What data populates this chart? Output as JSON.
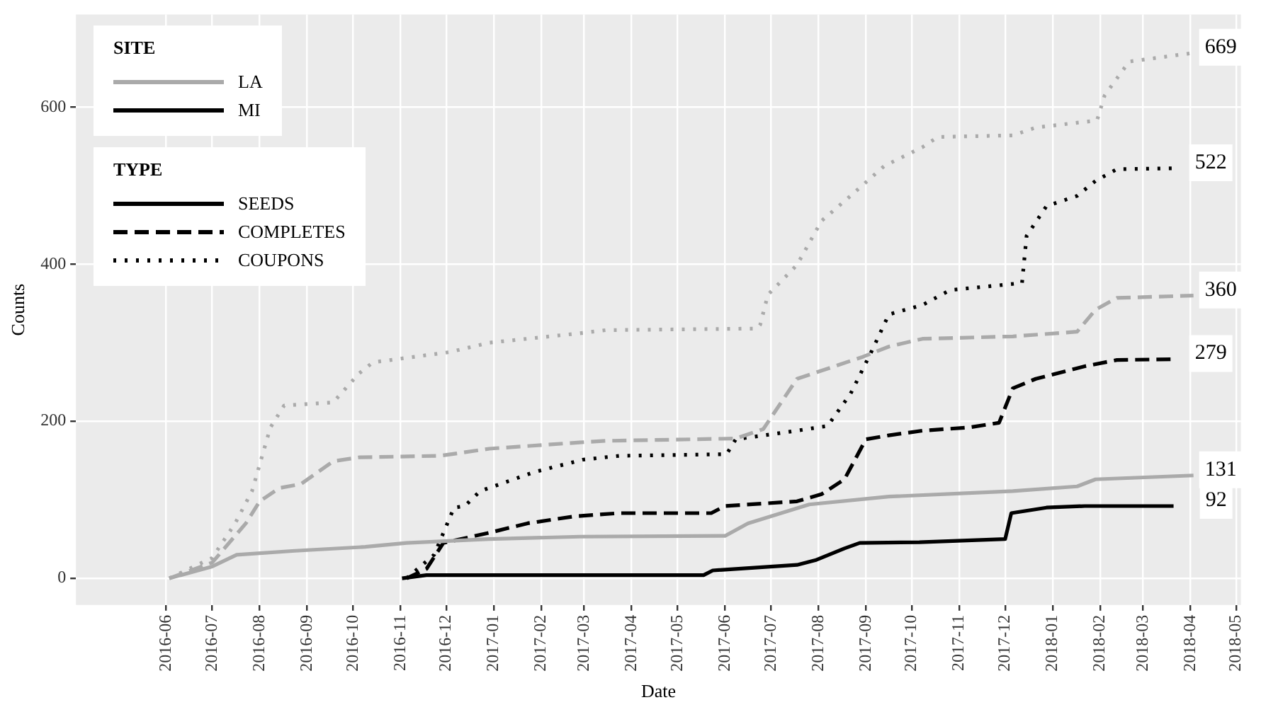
{
  "chart_data": {
    "type": "line",
    "xlabel": "Date",
    "ylabel": "Counts",
    "xlim": [
      "2016-04-03",
      "2018-05-04"
    ],
    "xticks": [
      "2016-06",
      "2016-07",
      "2016-08",
      "2016-09",
      "2016-10",
      "2016-11",
      "2016-12",
      "2017-01",
      "2017-02",
      "2017-03",
      "2017-04",
      "2017-05",
      "2017-06",
      "2017-07",
      "2017-08",
      "2017-09",
      "2017-10",
      "2017-11",
      "2017-12",
      "2018-01",
      "2018-02",
      "2018-03",
      "2018-04",
      "2018-05"
    ],
    "ylim": [
      -34,
      718
    ],
    "yticks": [
      0,
      200,
      400,
      600
    ],
    "grid": true,
    "annotations": [
      "SITE",
      "LA",
      "MI",
      "TYPE",
      "SEEDS",
      "COMPLETES",
      "COUPONS"
    ],
    "series": [
      {
        "color": "#aaaaaa",
        "line_style": "solid",
        "x": [
          "2016-06-03",
          "2016-07-01",
          "2016-07-17",
          "2016-08-24",
          "2016-10-09",
          "2016-11-05",
          "2016-12-29",
          "2017-02-26",
          "2017-06-01",
          "2017-06-16",
          "2017-07-26",
          "2017-09-16",
          "2017-12-06",
          "2018-01-17",
          "2018-01-29",
          "2018-04-03"
        ],
        "values": [
          0,
          15,
          30,
          35,
          40,
          45,
          50,
          53,
          54,
          70,
          94,
          104,
          111,
          117,
          126,
          131
        ],
        "value_labels": [
          null,
          null,
          null,
          null,
          null,
          null,
          null,
          null,
          null,
          null,
          null,
          null,
          null,
          null,
          null,
          "131"
        ]
      },
      {
        "color": "#aaaaaa",
        "line_style": "dashed",
        "x": [
          "2016-06-03",
          "2016-07-01",
          "2016-07-23",
          "2016-08-01",
          "2016-08-14",
          "2016-08-28",
          "2016-09-18",
          "2016-10-05",
          "2016-11-27",
          "2016-12-29",
          "2017-02-26",
          "2017-03-15",
          "2017-06-08",
          "2017-06-26",
          "2017-07-18",
          "2017-08-30",
          "2017-09-16",
          "2017-10-08",
          "2017-12-06",
          "2018-01-17",
          "2018-01-29",
          "2018-02-12",
          "2018-04-03"
        ],
        "values": [
          0,
          20,
          70,
          98,
          115,
          120,
          149,
          154,
          156,
          165,
          173,
          175,
          178,
          190,
          254,
          282,
          295,
          305,
          308,
          314,
          342,
          357,
          360
        ],
        "value_labels": [
          null,
          null,
          null,
          null,
          null,
          null,
          null,
          null,
          null,
          null,
          null,
          null,
          null,
          null,
          null,
          null,
          null,
          null,
          null,
          null,
          null,
          null,
          "360"
        ]
      },
      {
        "color": "#aaaaaa",
        "line_style": "dotted",
        "x": [
          "2016-06-03",
          "2016-07-01",
          "2016-07-16",
          "2016-07-27",
          "2016-08-08",
          "2016-08-17",
          "2016-09-18",
          "2016-10-05",
          "2016-10-14",
          "2016-12-03",
          "2016-12-29",
          "2017-02-26",
          "2017-03-15",
          "2017-06-22",
          "2017-06-24",
          "2017-06-29",
          "2017-07-18",
          "2017-08-03",
          "2017-08-22",
          "2017-09-13",
          "2017-10-08",
          "2017-10-18",
          "2017-12-06",
          "2017-12-21",
          "2018-01-30",
          "2018-02-04",
          "2018-02-20",
          "2018-04-03"
        ],
        "values": [
          0,
          26,
          70,
          111,
          192,
          220,
          224,
          261,
          275,
          288,
          300,
          312,
          316,
          318,
          323,
          361,
          399,
          455,
          487,
          525,
          549,
          562,
          564,
          574,
          583,
          615,
          658,
          669
        ],
        "value_labels": [
          null,
          null,
          null,
          null,
          null,
          null,
          null,
          null,
          null,
          null,
          null,
          null,
          null,
          null,
          null,
          null,
          null,
          null,
          null,
          null,
          null,
          null,
          null,
          null,
          null,
          null,
          null,
          "669"
        ]
      },
      {
        "color": "#000000",
        "line_style": "solid",
        "x": [
          "2016-11-02",
          "2016-11-18",
          "2017-05-18",
          "2017-05-24",
          "2017-07-18",
          "2017-07-30",
          "2017-08-18",
          "2017-08-28",
          "2017-10-06",
          "2017-12-01",
          "2017-12-05",
          "2017-12-28",
          "2018-01-22",
          "2018-03-21"
        ],
        "values": [
          0,
          4,
          4,
          10,
          17,
          23,
          38,
          45,
          46,
          50,
          83,
          90,
          92,
          92
        ],
        "value_labels": [
          null,
          null,
          null,
          null,
          null,
          null,
          null,
          null,
          null,
          null,
          null,
          null,
          null,
          "92"
        ]
      },
      {
        "color": "#000000",
        "line_style": "dashed",
        "x": [
          "2016-11-05",
          "2016-11-18",
          "2016-11-29",
          "2016-12-29",
          "2017-01-23",
          "2017-02-23",
          "2017-03-24",
          "2017-05-23",
          "2017-06-01",
          "2017-07-18",
          "2017-08-03",
          "2017-08-18",
          "2017-09-01",
          "2017-09-16",
          "2017-10-08",
          "2017-11-07",
          "2017-11-27",
          "2017-12-06",
          "2017-12-21",
          "2018-01-22",
          "2018-02-12",
          "2018-03-21"
        ],
        "values": [
          0,
          12,
          45,
          58,
          70,
          79,
          83,
          83,
          92,
          98,
          107,
          126,
          177,
          182,
          188,
          192,
          198,
          242,
          254,
          270,
          278,
          279
        ],
        "value_labels": [
          null,
          null,
          null,
          null,
          null,
          null,
          null,
          null,
          null,
          null,
          null,
          null,
          null,
          null,
          null,
          null,
          null,
          null,
          null,
          null,
          null,
          "279"
        ]
      },
      {
        "color": "#000000",
        "line_style": "dotted",
        "x": [
          "2016-11-05",
          "2016-11-23",
          "2016-12-06",
          "2016-12-13",
          "2016-12-23",
          "2017-01-27",
          "2017-02-28",
          "2017-03-24",
          "2017-06-02",
          "2017-06-08",
          "2017-07-18",
          "2017-08-07",
          "2017-08-22",
          "2017-09-04",
          "2017-09-16",
          "2017-10-08",
          "2017-10-26",
          "2017-12-12",
          "2017-12-15",
          "2017-12-28",
          "2018-01-17",
          "2018-01-29",
          "2018-02-12",
          "2018-03-21"
        ],
        "values": [
          0,
          30,
          90,
          92,
          111,
          135,
          151,
          156,
          158,
          177,
          188,
          194,
          235,
          286,
          336,
          348,
          367,
          376,
          436,
          474,
          487,
          506,
          521,
          522
        ],
        "value_labels": [
          null,
          null,
          null,
          null,
          null,
          null,
          null,
          null,
          null,
          null,
          null,
          null,
          null,
          null,
          null,
          null,
          null,
          null,
          null,
          null,
          null,
          null,
          null,
          "522"
        ]
      }
    ]
  }
}
